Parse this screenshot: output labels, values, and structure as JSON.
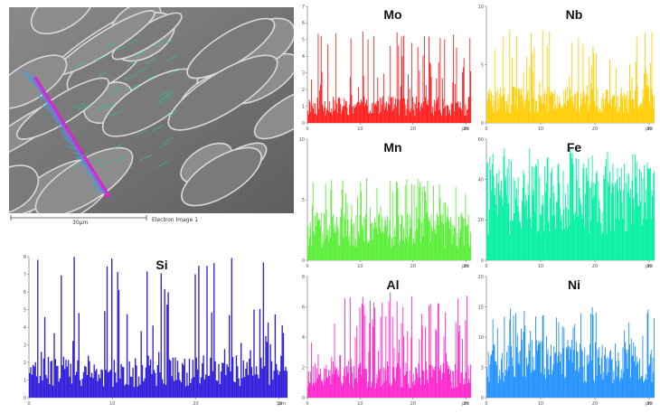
{
  "sem_image": {
    "scale_label": "30µm",
    "caption": "Electron Image 1",
    "trace_colors": [
      "#e020d0",
      "#3fa0e0",
      "#20c8a0"
    ]
  },
  "chart_data": [
    {
      "type": "bar",
      "title": "Mo",
      "color": "#ff1a1a",
      "ylim": [
        0,
        7
      ],
      "yticks": [
        0,
        1,
        2,
        3,
        4,
        5,
        6,
        7
      ],
      "xlim": [
        0,
        31
      ],
      "xticks": [
        0,
        10,
        20,
        30
      ],
      "x_unit": "µm",
      "seed": 11,
      "base": 1,
      "peak": 5.5
    },
    {
      "type": "bar",
      "title": "Nb",
      "color": "#ffcc00",
      "ylim": [
        0,
        10
      ],
      "yticks": [
        0,
        5,
        10
      ],
      "xlim": [
        0,
        31
      ],
      "xticks": [
        0,
        10,
        20,
        30
      ],
      "x_unit": "µm",
      "seed": 23,
      "base": 2,
      "peak": 8
    },
    {
      "type": "bar",
      "title": "Mn",
      "color": "#55ee33",
      "ylim": [
        0,
        10
      ],
      "yticks": [
        0,
        5,
        10
      ],
      "xlim": [
        0,
        31
      ],
      "xticks": [
        0,
        10,
        20,
        30
      ],
      "x_unit": "µm",
      "seed": 37,
      "base": 2.5,
      "peak": 7
    },
    {
      "type": "bar",
      "title": "Fe",
      "color": "#00f0a0",
      "ylim": [
        0,
        60
      ],
      "yticks": [
        0,
        20,
        40,
        60
      ],
      "xlim": [
        0,
        31
      ],
      "xticks": [
        0,
        10,
        20,
        30
      ],
      "x_unit": "µm",
      "seed": 41,
      "base": 30,
      "peak": 56
    },
    {
      "type": "bar",
      "title": "Al",
      "color": "#ff22cc",
      "ylim": [
        0,
        8
      ],
      "yticks": [
        0,
        2,
        4,
        6,
        8
      ],
      "xlim": [
        0,
        31
      ],
      "xticks": [
        0,
        10,
        20,
        30
      ],
      "x_unit": "µm",
      "seed": 53,
      "base": 1.5,
      "peak": 7
    },
    {
      "type": "bar",
      "title": "Ni",
      "color": "#1e90ff",
      "ylim": [
        0,
        20
      ],
      "yticks": [
        0,
        5,
        10,
        15,
        20
      ],
      "xlim": [
        0,
        31
      ],
      "xticks": [
        0,
        10,
        20,
        30
      ],
      "x_unit": "µm",
      "seed": 67,
      "base": 6,
      "peak": 15
    },
    {
      "type": "bar",
      "title": "Si",
      "color": "#3322dd",
      "ylim": [
        0,
        8
      ],
      "yticks": [
        0,
        1,
        2,
        3,
        4,
        5,
        6,
        7,
        8
      ],
      "xlim": [
        0,
        31
      ],
      "xticks": [
        0,
        10,
        20,
        30
      ],
      "x_unit": "µm",
      "seed": 79,
      "base": 1.5,
      "peak": 8
    }
  ]
}
